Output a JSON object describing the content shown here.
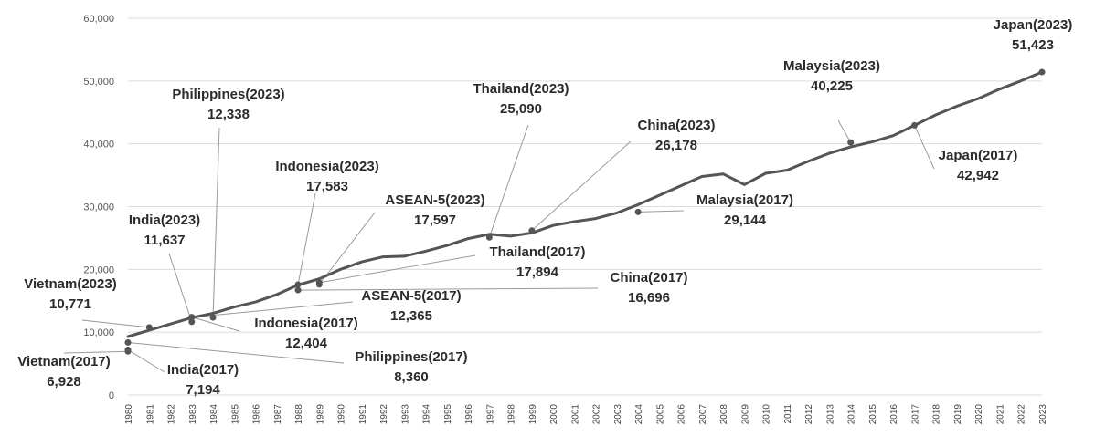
{
  "chart_data": {
    "type": "line",
    "title": "",
    "xlabel": "",
    "ylabel": "",
    "ylim": [
      0,
      60000
    ],
    "yticks": [
      0,
      10000,
      20000,
      30000,
      40000,
      50000,
      60000
    ],
    "ytick_labels": [
      "0",
      "10,000",
      "20,000",
      "30,000",
      "40,000",
      "50,000",
      "60,000"
    ],
    "grid": true,
    "x": [
      "1980",
      "1981",
      "1982",
      "1983",
      "1984",
      "1985",
      "1986",
      "1987",
      "1988",
      "1989",
      "1990",
      "1991",
      "1992",
      "1993",
      "1994",
      "1995",
      "1996",
      "1997",
      "1998",
      "1999",
      "2000",
      "2001",
      "2002",
      "2003",
      "2004",
      "2005",
      "2006",
      "2007",
      "2008",
      "2009",
      "2010",
      "2011",
      "2012",
      "2013",
      "2014",
      "2015",
      "2016",
      "2017",
      "2018",
      "2019",
      "2020",
      "2021",
      "2022",
      "2023"
    ],
    "series": [
      {
        "values": [
          9300,
          10300,
          11300,
          12300,
          13000,
          14000,
          14800,
          16000,
          17500,
          18500,
          20000,
          21200,
          22000,
          22100,
          22900,
          23800,
          24900,
          25600,
          25300,
          25800,
          27000,
          27600,
          28100,
          29000,
          30300,
          31800,
          33300,
          34800,
          35200,
          33500,
          35300,
          35800,
          37200,
          38500,
          39500,
          40300,
          41300,
          42950,
          44600,
          46000,
          47200,
          48700,
          50000,
          51423
        ],
        "color": "#555555"
      }
    ],
    "annotations": [
      {
        "label": "Japan(2023)",
        "value": "51,423",
        "x": "2023",
        "y": 51423
      },
      {
        "label": "Malaysia(2023)",
        "value": "40,225",
        "x": "2014",
        "y": 40225
      },
      {
        "label": "Japan(2017)",
        "value": "42,942",
        "x": "2017",
        "y": 42942
      },
      {
        "label": "Thailand(2023)",
        "value": "25,090",
        "x": "1997",
        "y": 25090
      },
      {
        "label": "China(2023)",
        "value": "26,178",
        "x": "1999",
        "y": 26178
      },
      {
        "label": "Philippines(2023)",
        "value": "12,338",
        "x": "1984",
        "y": 12338
      },
      {
        "label": "Indonesia(2023)",
        "value": "17,583",
        "x": "1988",
        "y": 17583
      },
      {
        "label": "ASEAN-5(2023)",
        "value": "17,597",
        "x": "1989",
        "y": 17597
      },
      {
        "label": "India(2023)",
        "value": "11,637",
        "x": "1983",
        "y": 11637
      },
      {
        "label": "Malaysia(2017)",
        "value": "29,144",
        "x": "2004",
        "y": 29144
      },
      {
        "label": "Thailand(2017)",
        "value": "17,894",
        "x": "1989",
        "y": 17894
      },
      {
        "label": "China(2017)",
        "value": "16,696",
        "x": "1988",
        "y": 16696
      },
      {
        "label": "Vietnam(2023)",
        "value": "10,771",
        "x": "1981",
        "y": 10771
      },
      {
        "label": "ASEAN-5(2017)",
        "value": "12,365",
        "x": "1983",
        "y": 12365
      },
      {
        "label": "Indonesia(2017)",
        "value": "12,404",
        "x": "1983",
        "y": 12404
      },
      {
        "label": "Philippines(2017)",
        "value": "8,360",
        "x": "1980",
        "y": 8360
      },
      {
        "label": "Vietnam(2017)",
        "value": "6,928",
        "x": "1980",
        "y": 6928
      },
      {
        "label": "India(2017)",
        "value": "7,194",
        "x": "1980",
        "y": 7194
      }
    ]
  }
}
